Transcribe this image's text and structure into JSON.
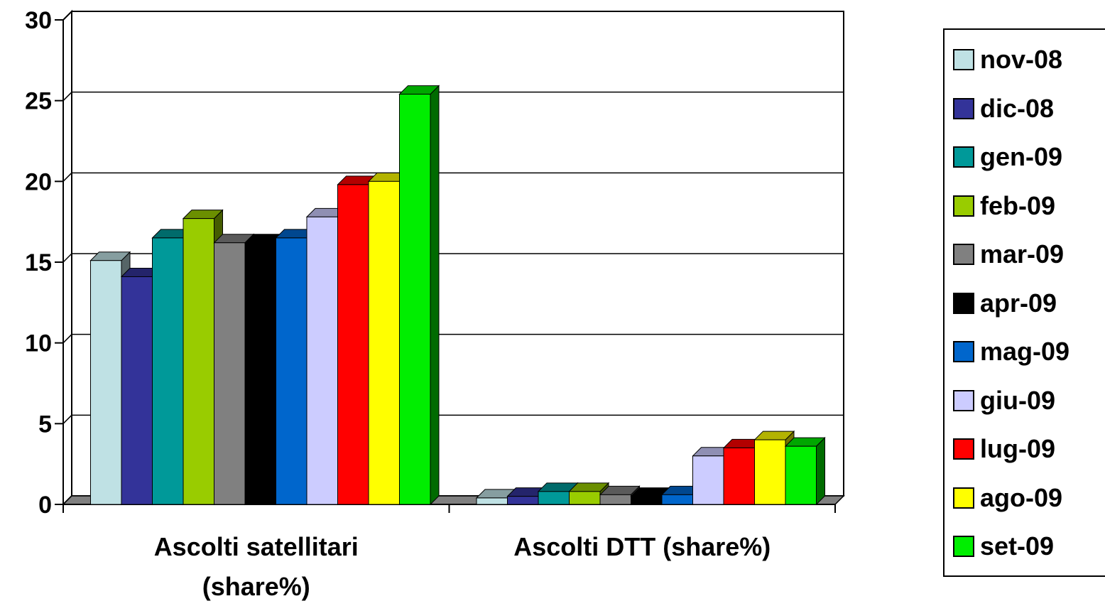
{
  "chart_data": {
    "type": "bar",
    "categories": [
      "Ascolti satellitari (share%)",
      "Ascolti DTT (share%)"
    ],
    "category_lines": [
      [
        "Ascolti satellitari",
        "(share%)"
      ],
      [
        "Ascolti DTT (share%)"
      ]
    ],
    "y_ticks": [
      "0",
      "5",
      "10",
      "15",
      "20",
      "25",
      "30"
    ],
    "ylim": [
      0,
      30
    ],
    "grid": true,
    "legend_position": "right",
    "series": [
      {
        "name": "nov-08",
        "color": "#BFE1E4",
        "values": [
          15.1,
          0.4
        ]
      },
      {
        "name": "dic-08",
        "color": "#333399",
        "values": [
          14.1,
          0.5
        ]
      },
      {
        "name": "gen-09",
        "color": "#009999",
        "values": [
          16.5,
          0.8
        ]
      },
      {
        "name": "feb-09",
        "color": "#99CC00",
        "values": [
          17.7,
          0.8
        ]
      },
      {
        "name": "mar-09",
        "color": "#808080",
        "values": [
          16.2,
          0.6
        ]
      },
      {
        "name": "apr-09",
        "color": "#000000",
        "values": [
          16.2,
          0.5
        ]
      },
      {
        "name": "mag-09",
        "color": "#0066CC",
        "values": [
          16.5,
          0.6
        ]
      },
      {
        "name": "giu-09",
        "color": "#CCCCFF",
        "values": [
          17.8,
          3.0
        ]
      },
      {
        "name": "lug-09",
        "color": "#FF0000",
        "values": [
          19.8,
          3.5
        ]
      },
      {
        "name": "ago-09",
        "color": "#FFFF00",
        "values": [
          20.0,
          4.0
        ]
      },
      {
        "name": "set-09",
        "color": "#00EE00",
        "values": [
          25.4,
          3.6
        ]
      }
    ]
  }
}
